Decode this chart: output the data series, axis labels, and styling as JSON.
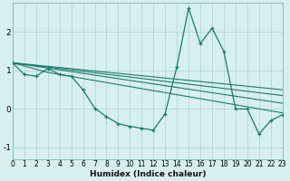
{
  "xlabel": "Humidex (Indice chaleur)",
  "bg_color": "#d8efef",
  "line_color": "#1a7a6e",
  "grid_color": "#afd8d8",
  "xlim": [
    0,
    23
  ],
  "ylim": [
    -1.3,
    2.75
  ],
  "yticks": [
    -1,
    0,
    1,
    2
  ],
  "xticks": [
    0,
    1,
    2,
    3,
    4,
    5,
    6,
    7,
    8,
    9,
    10,
    11,
    12,
    13,
    14,
    15,
    16,
    17,
    18,
    19,
    20,
    21,
    22,
    23
  ],
  "main_x": [
    0,
    1,
    2,
    3,
    4,
    5,
    6,
    7,
    8,
    9,
    10,
    11,
    12,
    13,
    14,
    15,
    16,
    17,
    18,
    19,
    20,
    21,
    22,
    23
  ],
  "main_y": [
    1.2,
    0.9,
    0.85,
    1.05,
    0.9,
    0.85,
    0.5,
    0.02,
    -0.2,
    -0.38,
    -0.45,
    -0.5,
    -0.55,
    -0.12,
    1.1,
    2.62,
    1.7,
    2.1,
    1.5,
    0.0,
    0.0,
    -0.65,
    -0.3,
    -0.15
  ],
  "trend_lines": [
    {
      "x": [
        0,
        23
      ],
      "y": [
        1.2,
        0.5
      ]
    },
    {
      "x": [
        0,
        23
      ],
      "y": [
        1.2,
        0.35
      ]
    },
    {
      "x": [
        0,
        23
      ],
      "y": [
        1.2,
        0.15
      ]
    },
    {
      "x": [
        0,
        3,
        23
      ],
      "y": [
        1.2,
        0.95,
        -0.1
      ]
    }
  ]
}
